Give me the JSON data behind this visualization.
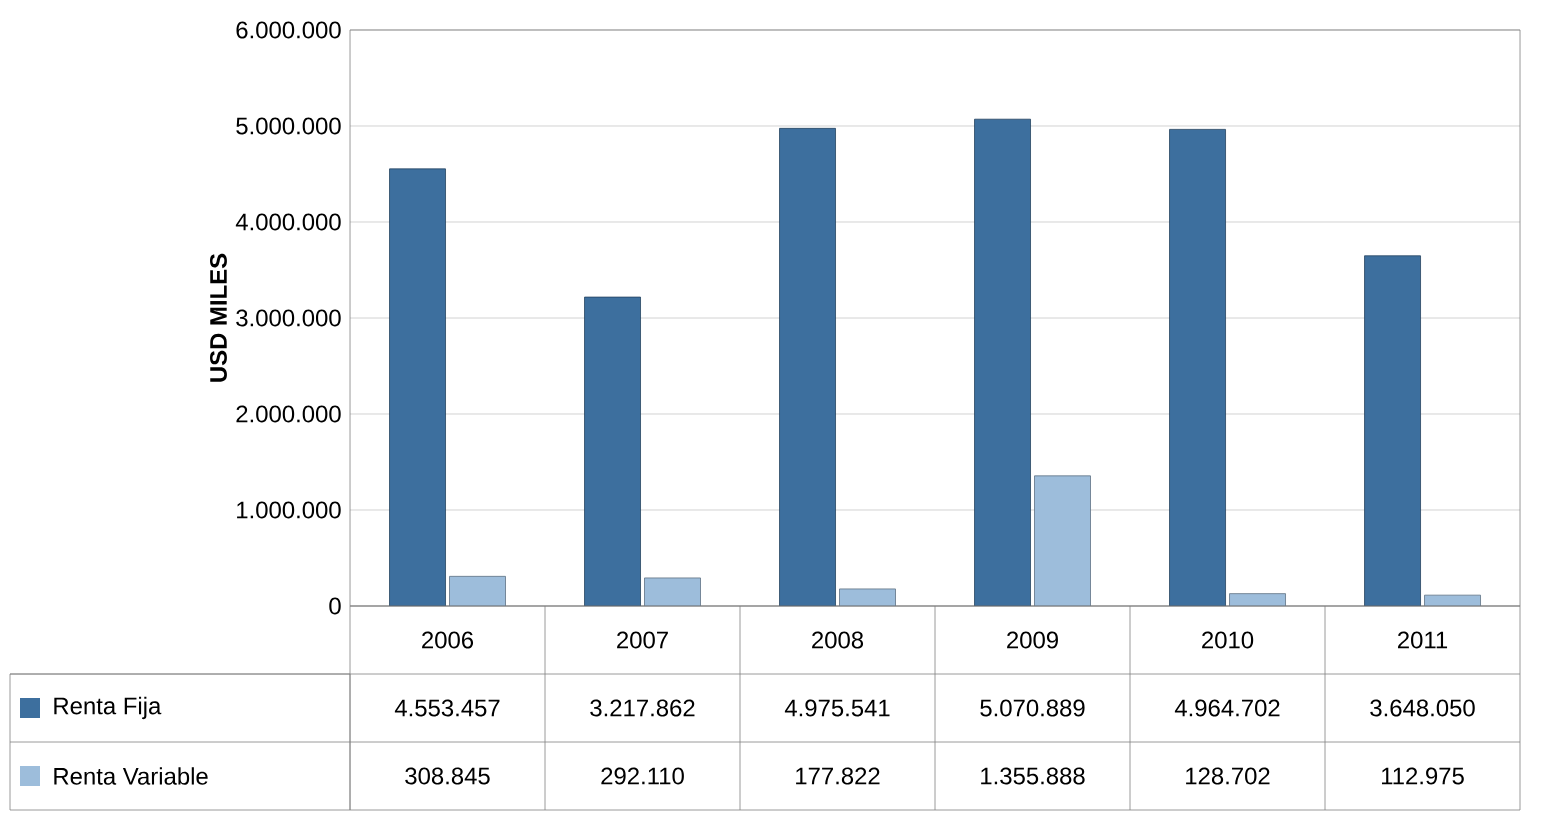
{
  "chart_data": {
    "type": "bar",
    "ylabel": "USD MILES",
    "categories": [
      "2006",
      "2007",
      "2008",
      "2009",
      "2010",
      "2011"
    ],
    "series": [
      {
        "name": "Renta Fija",
        "color": "#3d6f9e",
        "values": [
          4553457,
          3217862,
          4975541,
          5070889,
          4964702,
          3648050
        ],
        "value_labels": [
          "4.553.457",
          "3.217.862",
          "4.975.541",
          "5.070.889",
          "4.964.702",
          "3.648.050"
        ]
      },
      {
        "name": "Renta Variable",
        "color": "#9dbddb",
        "values": [
          308845,
          292110,
          177822,
          1355888,
          128702,
          112975
        ],
        "value_labels": [
          "308.845",
          "292.110",
          "177.822",
          "1.355.888",
          "128.702",
          "112.975"
        ]
      }
    ],
    "ylim": [
      0,
      6000000
    ],
    "yticks": [
      {
        "value": 0,
        "label": "0"
      },
      {
        "value": 1000000,
        "label": "1.000.000"
      },
      {
        "value": 2000000,
        "label": "2.000.000"
      },
      {
        "value": 3000000,
        "label": "3.000.000"
      },
      {
        "value": 4000000,
        "label": "4.000.000"
      },
      {
        "value": 5000000,
        "label": "5.000.000"
      },
      {
        "value": 6000000,
        "label": "6.000.000"
      }
    ],
    "grid": "y",
    "legend": "bottom"
  }
}
